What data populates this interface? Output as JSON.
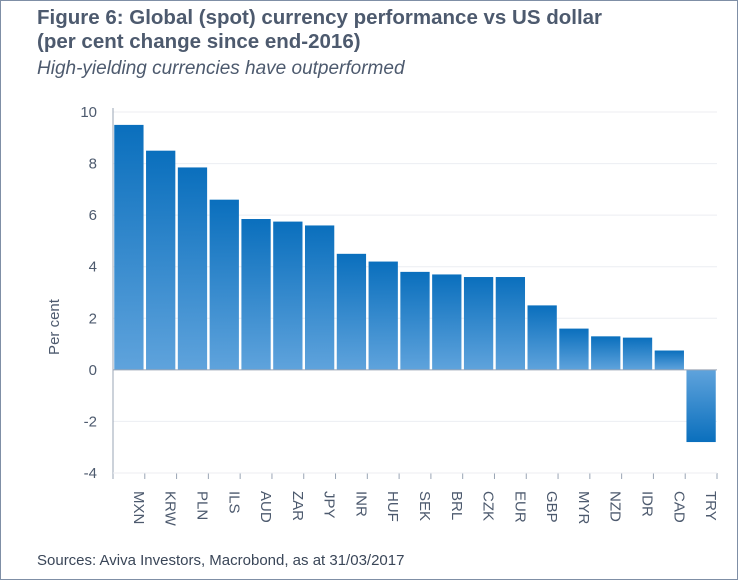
{
  "header": {
    "title_line1": "Figure 6: Global (spot) currency performance vs US dollar",
    "title_line2": "(per cent change since end-2016)",
    "subtitle": "High-yielding currencies have outperformed"
  },
  "footer": {
    "source": "Sources: Aviva Investors, Macrobond, as at 31/03/2017"
  },
  "colors": {
    "bar_top": "#0a6fbd",
    "bar_bottom": "#5fa3dc",
    "grid": "#eceef2",
    "axis": "#9aa5b4"
  },
  "chart_data": {
    "type": "bar",
    "ylabel": "Per cent",
    "xlabel": "",
    "ylim": [
      -4,
      10
    ],
    "yticks": [
      10,
      8,
      6,
      4,
      2,
      0,
      -2,
      -4
    ],
    "grid": true,
    "categories": [
      "MXN",
      "KRW",
      "PLN",
      "ILS",
      "AUD",
      "ZAR",
      "JPY",
      "INR",
      "HUF",
      "SEK",
      "BRL",
      "CZK",
      "EUR",
      "GBP",
      "MYR",
      "NZD",
      "IDR",
      "CAD",
      "TRY"
    ],
    "values": [
      9.5,
      8.5,
      7.85,
      6.6,
      5.85,
      5.75,
      5.6,
      4.5,
      4.2,
      3.8,
      3.7,
      3.6,
      3.6,
      2.5,
      1.6,
      1.3,
      1.25,
      0.75,
      -2.8
    ]
  }
}
